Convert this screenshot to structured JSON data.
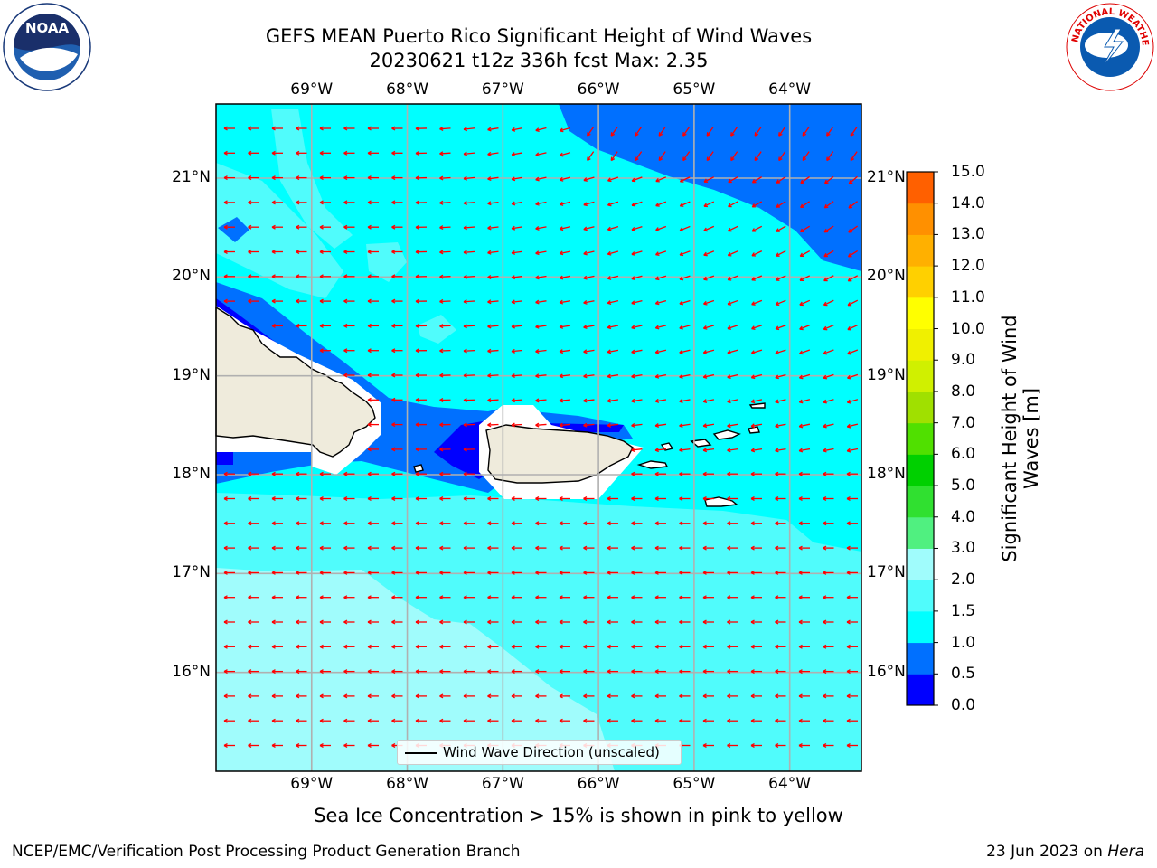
{
  "header": {
    "title_line1": "GEFS MEAN Puerto Rico Significant Height of Wind Waves",
    "title_line2": "20230621 t12z 336h fcst   Max: 2.35"
  },
  "logos": {
    "noaa_text": "NOAA",
    "noaa_ring_text": "NATIONAL OCEANIC AND ATMOSPHERIC ADMINISTRATION · U.S. DEPARTMENT OF COMMERCE",
    "nws_ring_text": "NATIONAL WEATHER SERVICE"
  },
  "map": {
    "lon_labels": [
      "69°W",
      "68°W",
      "67°W",
      "66°W",
      "65°W",
      "64°W"
    ],
    "lat_labels": [
      "21°N",
      "20°N",
      "19°N",
      "18°N",
      "17°N",
      "16°N"
    ],
    "lon_range": [
      -70.0,
      -63.25
    ],
    "lat_range": [
      15.0,
      21.75
    ],
    "arrow_color": "#ff0000",
    "grid_color": "#b0b0b0",
    "land_color": "#efebdc",
    "legend_label": "Wind Wave Direction (unscaled)"
  },
  "colorbar": {
    "title_line1": "Significant Height of Wind",
    "title_line2": "Waves [m]",
    "tick_labels": [
      "15.0",
      "14.0",
      "13.0",
      "12.0",
      "11.0",
      "10.0",
      "9.0",
      "8.0",
      "7.0",
      "6.0",
      "5.0",
      "4.0",
      "3.0",
      "2.0",
      "1.5",
      "1.0",
      "0.5",
      "0.0"
    ],
    "colors_bottom_to_top": [
      "#0000ff",
      "#0070ff",
      "#00ffff",
      "#50fcfc",
      "#a0fcfc",
      "#50f080",
      "#30e030",
      "#00d000",
      "#50e000",
      "#a0e000",
      "#d0f000",
      "#f0f000",
      "#ffff00",
      "#ffd000",
      "#ffb000",
      "#ff9000",
      "#ff6000",
      "#ff3000",
      "#ff0000"
    ]
  },
  "footer": {
    "sea_ice_note": "Sea Ice Concentration > 15% is shown in pink to yellow",
    "branch": "NCEP/EMC/Verification Post Processing Product Generation Branch",
    "date_prefix": "23 Jun 2023 on ",
    "machine": "Hera"
  }
}
